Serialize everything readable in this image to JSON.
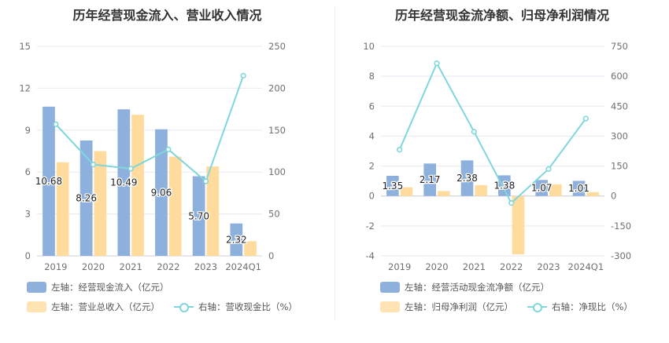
{
  "colors": {
    "bar_primary": "#8eb0dd",
    "bar_secondary": "#ffdc9e",
    "line": "#7fd6db",
    "grid": "#e8e8f0",
    "axis_text": "#707070"
  },
  "charts": {
    "left": {
      "title": "历年经营现金流入、营业收入情况",
      "legend": {
        "primary": "左轴：经营现金流入（亿元）",
        "secondary": "左轴：营业总收入（亿元）",
        "line": "右轴：营收现金比（%）"
      }
    },
    "right": {
      "title": "历年经营现金流净额、归母净利润情况",
      "legend": {
        "primary": "左轴：经营活动现金流净额（亿元）",
        "secondary": "左轴：归母净利润（亿元）",
        "line": "右轴：净现比（%）"
      }
    }
  },
  "chart_data": [
    {
      "type": "bar",
      "title": "历年经营现金流入、营业收入情况",
      "categories": [
        "2019",
        "2020",
        "2021",
        "2022",
        "2023",
        "2024Q1"
      ],
      "series": [
        {
          "name": "左轴：经营现金流入（亿元）",
          "axis": "left",
          "kind": "bar",
          "values": [
            10.68,
            8.26,
            10.49,
            9.06,
            5.7,
            2.32
          ],
          "labels": [
            "10.68",
            "8.26",
            "10.49",
            "9.06",
            "5.70",
            "2.32"
          ]
        },
        {
          "name": "左轴：营业总收入（亿元）",
          "axis": "left",
          "kind": "bar",
          "values": [
            6.7,
            7.5,
            10.1,
            7.1,
            6.4,
            1.05
          ]
        },
        {
          "name": "右轴：营收现金比（%）",
          "axis": "right",
          "kind": "line",
          "values": [
            157,
            109,
            104,
            127,
            89,
            215
          ]
        }
      ],
      "left_axis": {
        "min": 0,
        "max": 15,
        "ticks": [
          0,
          3,
          6,
          9,
          12,
          15
        ]
      },
      "right_axis": {
        "min": 0,
        "max": 250,
        "ticks": [
          0,
          50,
          100,
          150,
          200,
          250
        ]
      },
      "grid": true,
      "legend_position": "bottom"
    },
    {
      "type": "bar",
      "title": "历年经营现金流净额、归母净利润情况",
      "categories": [
        "2019",
        "2020",
        "2021",
        "2022",
        "2023",
        "2024Q1"
      ],
      "series": [
        {
          "name": "左轴：经营活动现金流净额（亿元）",
          "axis": "left",
          "kind": "bar",
          "values": [
            1.35,
            2.17,
            2.38,
            1.38,
            1.07,
            1.01
          ],
          "labels": [
            "1.35",
            "2.17",
            "2.38",
            "1.38",
            "1.07",
            "1.01"
          ]
        },
        {
          "name": "左轴：归母净利润（亿元）",
          "axis": "left",
          "kind": "bar",
          "values": [
            0.58,
            0.33,
            0.73,
            -3.9,
            0.78,
            0.26
          ]
        },
        {
          "name": "右轴：净现比（%）",
          "axis": "right",
          "kind": "line",
          "values": [
            232,
            665,
            322,
            -35,
            135,
            388
          ]
        }
      ],
      "left_axis": {
        "min": -4,
        "max": 10,
        "ticks": [
          -4,
          -2,
          0,
          2,
          4,
          6,
          8,
          10
        ]
      },
      "right_axis": {
        "min": -300,
        "max": 750,
        "ticks": [
          -300,
          -150,
          0,
          150,
          300,
          450,
          600,
          750
        ]
      },
      "grid": true,
      "legend_position": "bottom"
    }
  ]
}
